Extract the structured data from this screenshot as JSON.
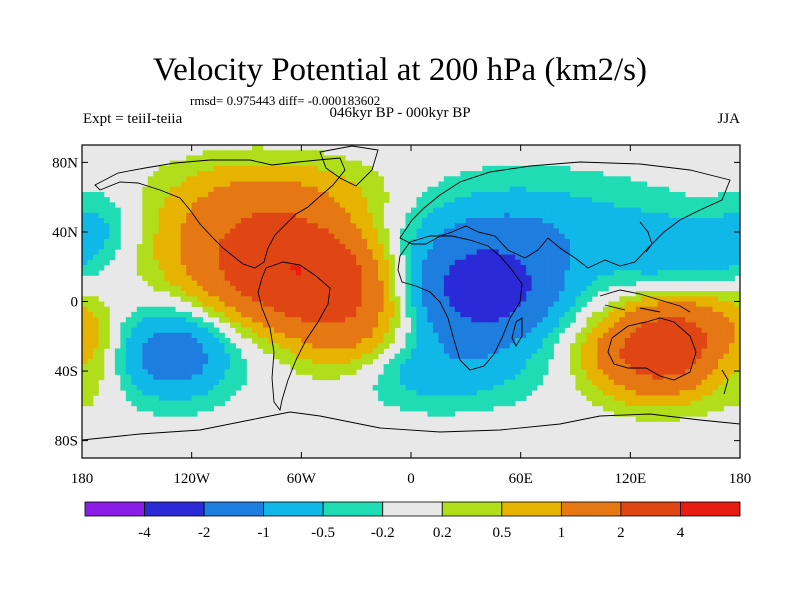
{
  "chart_data": {
    "type": "heatmap",
    "title": "Velocity Potential at 200 hPa (km2/s)",
    "stats_text": "rmsd= 0.975443 diff= -0.000183602",
    "left_label": "Expt = teiiI-teiia",
    "center_label": "046kyr BP - 000kyr BP",
    "right_label": "JJA",
    "x_range": [
      -180,
      180
    ],
    "y_range": [
      -90,
      90
    ],
    "x_ticks": [
      {
        "value": -180,
        "label": "180"
      },
      {
        "value": -120,
        "label": "120W"
      },
      {
        "value": -60,
        "label": "60W"
      },
      {
        "value": 0,
        "label": "0"
      },
      {
        "value": 60,
        "label": "60E"
      },
      {
        "value": 120,
        "label": "120E"
      },
      {
        "value": 180,
        "label": "180"
      }
    ],
    "y_ticks": [
      {
        "value": 80,
        "label": "80N"
      },
      {
        "value": 40,
        "label": "40N"
      },
      {
        "value": 0,
        "label": "0"
      },
      {
        "value": -40,
        "label": "40S"
      },
      {
        "value": -80,
        "label": "80S"
      }
    ],
    "levels": [
      -4,
      -2,
      -1,
      -0.5,
      -0.2,
      0.2,
      0.5,
      1,
      2,
      4
    ],
    "level_labels": [
      "-4",
      "-2",
      "-1",
      "-0.5",
      "-0.2",
      "0.2",
      "0.5",
      "1",
      "2",
      "4"
    ],
    "colors": [
      "#8a1ee6",
      "#2a2ad6",
      "#1e7ee0",
      "#10b8e8",
      "#20dcb4",
      "#e8e8e8",
      "#b0de1a",
      "#e6b400",
      "#e67814",
      "#e04614",
      "#e81c10"
    ],
    "field_centers": [
      {
        "lon": -60,
        "lat": 18,
        "amp": 3.4,
        "slon": 28,
        "slat": 20
      },
      {
        "lon": -100,
        "lat": 32,
        "amp": 1.2,
        "slon": 30,
        "slat": 25
      },
      {
        "lon": -35,
        "lat": -15,
        "amp": 1.3,
        "slon": 22,
        "slat": 22
      },
      {
        "lon": -65,
        "lat": 60,
        "amp": 0.8,
        "slon": 40,
        "slat": 15
      },
      {
        "lon": 135,
        "lat": -30,
        "amp": 2.6,
        "slon": 25,
        "slat": 17
      },
      {
        "lon": 150,
        "lat": -15,
        "amp": 1.0,
        "slon": 20,
        "slat": 15
      },
      {
        "lon": 40,
        "lat": 5,
        "amp": -2.6,
        "slon": 27,
        "slat": 20
      },
      {
        "lon": 60,
        "lat": 40,
        "amp": -0.9,
        "slon": 55,
        "slat": 22
      },
      {
        "lon": 10,
        "lat": -40,
        "amp": -0.8,
        "slon": 40,
        "slat": 15
      },
      {
        "lon": -130,
        "lat": -30,
        "amp": -1.5,
        "slon": 22,
        "slat": 18
      },
      {
        "lon": 140,
        "lat": 28,
        "amp": -0.6,
        "slon": 20,
        "slat": 15
      },
      {
        "lon": -170,
        "lat": 45,
        "amp": -0.45,
        "slon": 15,
        "slat": 14
      },
      {
        "lon": 175,
        "lat": 30,
        "amp": -0.45,
        "slon": 15,
        "slat": 14
      },
      {
        "lon": 175,
        "lat": -35,
        "amp": -0.55,
        "slon": 12,
        "slat": 12
      },
      {
        "lon": -175,
        "lat": -30,
        "amp": 0.6,
        "slon": 12,
        "slat": 20
      }
    ]
  }
}
